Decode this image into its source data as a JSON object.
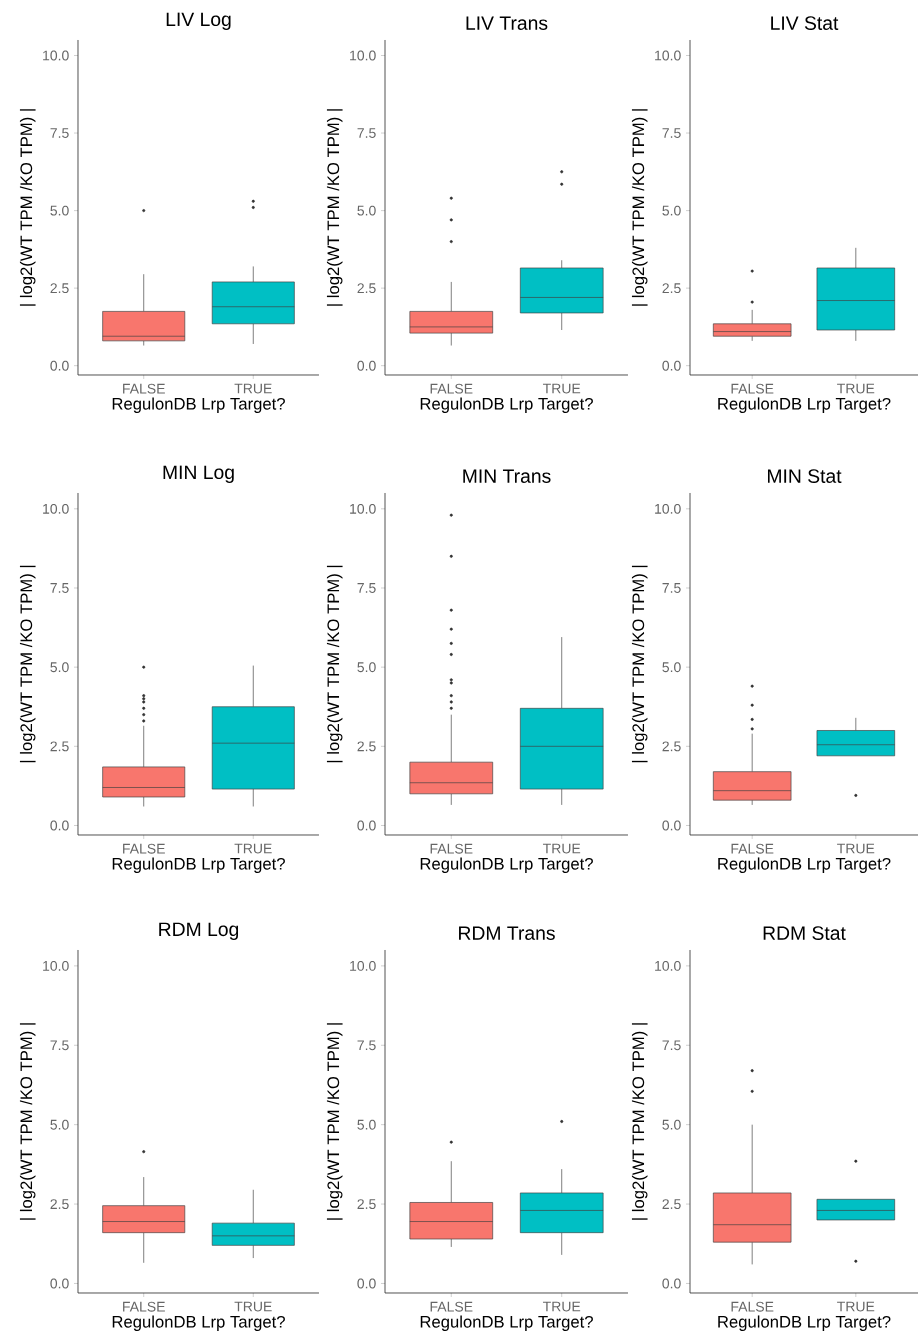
{
  "chart_data": [
    {
      "type": "box",
      "title": "LIV Log",
      "xlabel": "RegulonDB Lrp Target?",
      "ylabel": "| log2(WT TPM /KO TPM) |",
      "categories": [
        "FALSE",
        "TRUE"
      ],
      "colors": [
        "#f8766d",
        "#00bfc4"
      ],
      "ylim": [
        -0.3,
        10.5
      ],
      "yticks": [
        {
          "value": 0,
          "label": "0.0"
        },
        {
          "value": 2.5,
          "label": "2.5"
        },
        {
          "value": 5,
          "label": "5.0"
        },
        {
          "value": 7.5,
          "label": "7.5"
        },
        {
          "value": 10,
          "label": "10.0"
        }
      ],
      "grid": false,
      "boxes": [
        {
          "low": 0.65,
          "q1": 0.8,
          "median": 0.95,
          "q3": 1.75,
          "high": 2.95,
          "outliers": [
            5.0
          ]
        },
        {
          "low": 0.7,
          "q1": 1.35,
          "median": 1.9,
          "q3": 2.7,
          "high": 3.2,
          "outliers": [
            5.1,
            5.3
          ]
        }
      ]
    },
    {
      "type": "box",
      "title": "LIV Trans",
      "xlabel": "RegulonDB Lrp Target?",
      "ylabel": "| log2(WT TPM /KO TPM) |",
      "categories": [
        "FALSE",
        "TRUE"
      ],
      "colors": [
        "#f8766d",
        "#00bfc4"
      ],
      "ylim": [
        -0.3,
        10.5
      ],
      "yticks": [
        {
          "value": 0,
          "label": "0.0"
        },
        {
          "value": 2.5,
          "label": "2.5"
        },
        {
          "value": 5,
          "label": "5.0"
        },
        {
          "value": 7.5,
          "label": "7.5"
        },
        {
          "value": 10,
          "label": "10.0"
        }
      ],
      "grid": false,
      "boxes": [
        {
          "low": 0.65,
          "q1": 1.05,
          "median": 1.25,
          "q3": 1.75,
          "high": 2.7,
          "outliers": [
            4.0,
            4.7,
            5.4
          ]
        },
        {
          "low": 1.15,
          "q1": 1.7,
          "median": 2.2,
          "q3": 3.15,
          "high": 3.4,
          "outliers": [
            5.85,
            6.25
          ]
        }
      ]
    },
    {
      "type": "box",
      "title": "LIV Stat",
      "xlabel": "RegulonDB Lrp Target?",
      "ylabel": "| log2(WT TPM /KO TPM) |",
      "categories": [
        "FALSE",
        "TRUE"
      ],
      "colors": [
        "#f8766d",
        "#00bfc4"
      ],
      "ylim": [
        -0.3,
        10.5
      ],
      "yticks": [
        {
          "value": 0,
          "label": "0.0"
        },
        {
          "value": 2.5,
          "label": "2.5"
        },
        {
          "value": 5,
          "label": "5.0"
        },
        {
          "value": 7.5,
          "label": "7.5"
        },
        {
          "value": 10,
          "label": "10.0"
        }
      ],
      "grid": false,
      "boxes": [
        {
          "low": 0.8,
          "q1": 0.95,
          "median": 1.1,
          "q3": 1.35,
          "high": 1.8,
          "outliers": [
            2.05,
            3.05
          ]
        },
        {
          "low": 0.8,
          "q1": 1.15,
          "median": 2.1,
          "q3": 3.15,
          "high": 3.8
        }
      ]
    },
    {
      "type": "box",
      "title": "MIN Log",
      "xlabel": "RegulonDB Lrp Target?",
      "ylabel": "| log2(WT TPM /KO TPM) |",
      "categories": [
        "FALSE",
        "TRUE"
      ],
      "colors": [
        "#f8766d",
        "#00bfc4"
      ],
      "ylim": [
        -0.3,
        10.5
      ],
      "yticks": [
        {
          "value": 0,
          "label": "0.0"
        },
        {
          "value": 2.5,
          "label": "2.5"
        },
        {
          "value": 5,
          "label": "5.0"
        },
        {
          "value": 7.5,
          "label": "7.5"
        },
        {
          "value": 10,
          "label": "10.0"
        }
      ],
      "grid": false,
      "boxes": [
        {
          "low": 0.6,
          "q1": 0.9,
          "median": 1.2,
          "q3": 1.85,
          "high": 3.15,
          "outliers": [
            3.3,
            3.5,
            3.7,
            3.9,
            4.0,
            4.1,
            5.0
          ]
        },
        {
          "low": 0.6,
          "q1": 1.15,
          "median": 2.6,
          "q3": 3.75,
          "high": 5.05
        }
      ]
    },
    {
      "type": "box",
      "title": "MIN Trans",
      "xlabel": "RegulonDB Lrp Target?",
      "ylabel": "| log2(WT TPM /KO TPM) |",
      "categories": [
        "FALSE",
        "TRUE"
      ],
      "colors": [
        "#f8766d",
        "#00bfc4"
      ],
      "ylim": [
        -0.3,
        10.5
      ],
      "yticks": [
        {
          "value": 0,
          "label": "0.0"
        },
        {
          "value": 2.5,
          "label": "2.5"
        },
        {
          "value": 5,
          "label": "5.0"
        },
        {
          "value": 7.5,
          "label": "7.5"
        },
        {
          "value": 10,
          "label": "10.0"
        }
      ],
      "grid": false,
      "boxes": [
        {
          "low": 0.65,
          "q1": 1.0,
          "median": 1.35,
          "q3": 2.0,
          "high": 3.5,
          "outliers": [
            3.7,
            3.9,
            4.1,
            4.5,
            4.6,
            5.4,
            5.75,
            6.2,
            6.8,
            8.5,
            9.8
          ]
        },
        {
          "low": 0.65,
          "q1": 1.15,
          "median": 2.5,
          "q3": 3.7,
          "high": 5.95
        }
      ]
    },
    {
      "type": "box",
      "title": "MIN Stat",
      "xlabel": "RegulonDB Lrp Target?",
      "ylabel": "| log2(WT TPM /KO TPM) |",
      "categories": [
        "FALSE",
        "TRUE"
      ],
      "colors": [
        "#f8766d",
        "#00bfc4"
      ],
      "ylim": [
        -0.3,
        10.5
      ],
      "yticks": [
        {
          "value": 0,
          "label": "0.0"
        },
        {
          "value": 2.5,
          "label": "2.5"
        },
        {
          "value": 5,
          "label": "5.0"
        },
        {
          "value": 7.5,
          "label": "7.5"
        },
        {
          "value": 10,
          "label": "10.0"
        }
      ],
      "grid": false,
      "boxes": [
        {
          "low": 0.65,
          "q1": 0.8,
          "median": 1.1,
          "q3": 1.7,
          "high": 2.9,
          "outliers": [
            3.05,
            3.35,
            3.8,
            4.4
          ]
        },
        {
          "low": 2.2,
          "q1": 2.2,
          "median": 2.55,
          "q3": 3.0,
          "high": 3.4,
          "outliers": [
            0.95
          ]
        }
      ]
    },
    {
      "type": "box",
      "title": "RDM Log",
      "xlabel": "RegulonDB Lrp Target?",
      "ylabel": "| log2(WT TPM /KO TPM) |",
      "categories": [
        "FALSE",
        "TRUE"
      ],
      "colors": [
        "#f8766d",
        "#00bfc4"
      ],
      "ylim": [
        -0.3,
        10.5
      ],
      "yticks": [
        {
          "value": 0,
          "label": "0.0"
        },
        {
          "value": 2.5,
          "label": "2.5"
        },
        {
          "value": 5,
          "label": "5.0"
        },
        {
          "value": 7.5,
          "label": "7.5"
        },
        {
          "value": 10,
          "label": "10.0"
        }
      ],
      "grid": false,
      "boxes": [
        {
          "low": 0.65,
          "q1": 1.6,
          "median": 1.95,
          "q3": 2.45,
          "high": 3.35,
          "outliers": [
            4.15
          ]
        },
        {
          "low": 0.8,
          "q1": 1.2,
          "median": 1.5,
          "q3": 1.9,
          "high": 2.95
        }
      ]
    },
    {
      "type": "box",
      "title": "RDM Trans",
      "xlabel": "RegulonDB Lrp Target?",
      "ylabel": "| log2(WT TPM /KO TPM) |",
      "categories": [
        "FALSE",
        "TRUE"
      ],
      "colors": [
        "#f8766d",
        "#00bfc4"
      ],
      "ylim": [
        -0.3,
        10.5
      ],
      "yticks": [
        {
          "value": 0,
          "label": "0.0"
        },
        {
          "value": 2.5,
          "label": "2.5"
        },
        {
          "value": 5,
          "label": "5.0"
        },
        {
          "value": 7.5,
          "label": "7.5"
        },
        {
          "value": 10,
          "label": "10.0"
        }
      ],
      "grid": false,
      "boxes": [
        {
          "low": 1.15,
          "q1": 1.4,
          "median": 1.95,
          "q3": 2.55,
          "high": 3.85,
          "outliers": [
            4.45
          ]
        },
        {
          "low": 0.9,
          "q1": 1.6,
          "median": 2.3,
          "q3": 2.85,
          "high": 3.6,
          "outliers": [
            5.1
          ]
        }
      ]
    },
    {
      "type": "box",
      "title": "RDM Stat",
      "xlabel": "RegulonDB Lrp Target?",
      "ylabel": "| log2(WT TPM /KO TPM) |",
      "categories": [
        "FALSE",
        "TRUE"
      ],
      "colors": [
        "#f8766d",
        "#00bfc4"
      ],
      "ylim": [
        -0.3,
        10.5
      ],
      "yticks": [
        {
          "value": 0,
          "label": "0.0"
        },
        {
          "value": 2.5,
          "label": "2.5"
        },
        {
          "value": 5,
          "label": "5.0"
        },
        {
          "value": 7.5,
          "label": "7.5"
        },
        {
          "value": 10,
          "label": "10.0"
        }
      ],
      "grid": false,
      "boxes": [
        {
          "low": 0.6,
          "q1": 1.3,
          "median": 1.85,
          "q3": 2.85,
          "high": 5.0,
          "outliers": [
            6.05,
            6.7
          ]
        },
        {
          "low": 2.0,
          "q1": 2.0,
          "median": 2.3,
          "q3": 2.65,
          "high": 2.65,
          "outliers": [
            0.7,
            3.85
          ]
        }
      ]
    }
  ]
}
